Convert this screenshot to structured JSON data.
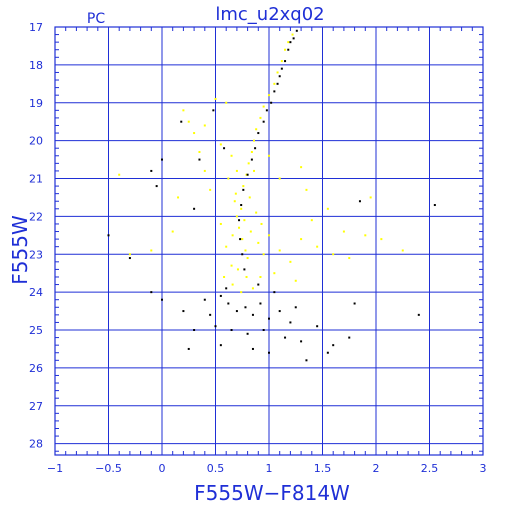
{
  "chart_data": {
    "type": "scatter",
    "title": "lmc_u2xq02",
    "corner_label": "PC",
    "xlabel": "F555W−F814W",
    "ylabel": "F555W",
    "xlim": [
      -1,
      3
    ],
    "ylim": [
      28.3,
      17
    ],
    "y_inverted": true,
    "grid": true,
    "x_ticks": [
      -1,
      -0.5,
      0,
      0.5,
      1,
      1.5,
      2,
      2.5,
      3
    ],
    "x_tick_labels": [
      "−1",
      "−0.5",
      "0",
      "0.5",
      "1",
      "1.5",
      "2",
      "2.5",
      "3"
    ],
    "y_ticks": [
      17,
      18,
      19,
      20,
      21,
      22,
      23,
      24,
      25,
      26,
      27,
      28
    ],
    "y_tick_labels": [
      "17",
      "18",
      "19",
      "20",
      "21",
      "22",
      "23",
      "24",
      "25",
      "26",
      "27",
      "28"
    ],
    "colors": {
      "axes": "#1f2fd6",
      "series_yellow": "#ffff00",
      "series_black": "#000000"
    },
    "series": [
      {
        "color": "#ffff00",
        "points": [
          [
            0.7,
            22.0
          ],
          [
            0.72,
            22.3
          ],
          [
            0.75,
            22.6
          ],
          [
            0.78,
            22.9
          ],
          [
            0.8,
            23.1
          ],
          [
            0.74,
            21.8
          ],
          [
            0.68,
            21.6
          ],
          [
            0.82,
            21.5
          ],
          [
            0.76,
            21.2
          ],
          [
            0.79,
            20.9
          ],
          [
            0.81,
            20.6
          ],
          [
            0.84,
            20.3
          ],
          [
            0.86,
            20.0
          ],
          [
            0.88,
            19.7
          ],
          [
            0.92,
            19.4
          ],
          [
            0.95,
            19.1
          ],
          [
            1.0,
            18.8
          ],
          [
            1.05,
            18.5
          ],
          [
            1.08,
            18.2
          ],
          [
            1.12,
            17.9
          ],
          [
            1.15,
            17.6
          ],
          [
            1.18,
            17.4
          ],
          [
            1.22,
            17.2
          ],
          [
            0.55,
            22.2
          ],
          [
            0.6,
            22.8
          ],
          [
            0.65,
            23.3
          ],
          [
            0.9,
            22.7
          ],
          [
            0.95,
            23.0
          ],
          [
            1.0,
            22.5
          ],
          [
            1.1,
            22.9
          ],
          [
            1.2,
            23.2
          ],
          [
            1.3,
            22.6
          ],
          [
            1.45,
            22.8
          ],
          [
            1.6,
            23.0
          ],
          [
            1.75,
            23.1
          ],
          [
            1.9,
            22.5
          ],
          [
            0.45,
            21.3
          ],
          [
            0.4,
            20.8
          ],
          [
            0.35,
            20.3
          ],
          [
            0.3,
            19.8
          ],
          [
            0.25,
            19.5
          ],
          [
            0.2,
            19.2
          ],
          [
            0.15,
            21.5
          ],
          [
            0.1,
            22.4
          ],
          [
            -0.1,
            22.9
          ],
          [
            -0.3,
            23.0
          ],
          [
            -0.4,
            20.9
          ],
          [
            0.6,
            19.0
          ],
          [
            0.5,
            18.9
          ],
          [
            0.4,
            19.6
          ],
          [
            0.55,
            20.1
          ],
          [
            0.65,
            20.4
          ],
          [
            0.7,
            20.8
          ],
          [
            0.58,
            23.6
          ],
          [
            0.66,
            23.8
          ],
          [
            0.74,
            24.0
          ],
          [
            0.85,
            23.9
          ],
          [
            0.92,
            23.6
          ],
          [
            1.05,
            23.5
          ],
          [
            1.25,
            23.7
          ],
          [
            1.4,
            22.1
          ],
          [
            1.55,
            21.8
          ],
          [
            1.7,
            22.4
          ],
          [
            1.35,
            21.3
          ],
          [
            1.1,
            21.0
          ],
          [
            1.0,
            20.4
          ],
          [
            1.3,
            20.7
          ],
          [
            2.05,
            22.6
          ],
          [
            2.25,
            22.9
          ],
          [
            1.95,
            21.5
          ],
          [
            0.62,
            21.0
          ],
          [
            0.77,
            22.1
          ],
          [
            0.83,
            22.4
          ],
          [
            0.71,
            23.4
          ],
          [
            0.88,
            21.9
          ],
          [
            0.66,
            22.5
          ],
          [
            0.93,
            22.2
          ],
          [
            0.79,
            23.6
          ],
          [
            0.69,
            21.4
          ],
          [
            0.86,
            20.8
          ]
        ]
      },
      {
        "color": "#000000",
        "points": [
          [
            0.55,
            24.1
          ],
          [
            0.62,
            24.3
          ],
          [
            0.7,
            24.5
          ],
          [
            0.78,
            24.4
          ],
          [
            0.85,
            24.6
          ],
          [
            0.92,
            24.3
          ],
          [
            1.0,
            24.7
          ],
          [
            1.1,
            24.5
          ],
          [
            1.2,
            24.8
          ],
          [
            0.5,
            24.9
          ],
          [
            0.65,
            25.0
          ],
          [
            0.8,
            25.1
          ],
          [
            0.95,
            25.0
          ],
          [
            1.15,
            25.2
          ],
          [
            1.3,
            25.3
          ],
          [
            0.45,
            24.6
          ],
          [
            0.4,
            24.2
          ],
          [
            0.6,
            23.9
          ],
          [
            0.9,
            23.8
          ],
          [
            1.05,
            24.0
          ],
          [
            1.25,
            24.4
          ],
          [
            1.45,
            24.9
          ],
          [
            1.6,
            25.4
          ],
          [
            1.75,
            25.2
          ],
          [
            0.3,
            25.0
          ],
          [
            0.2,
            24.5
          ],
          [
            0.0,
            24.2
          ],
          [
            -0.1,
            24.0
          ],
          [
            -0.3,
            23.1
          ],
          [
            -0.5,
            22.5
          ],
          [
            1.2,
            17.4
          ],
          [
            1.23,
            17.3
          ],
          [
            1.26,
            17.1
          ],
          [
            1.18,
            17.6
          ],
          [
            1.15,
            17.9
          ],
          [
            1.12,
            18.1
          ],
          [
            1.1,
            18.3
          ],
          [
            1.08,
            18.5
          ],
          [
            1.05,
            18.7
          ],
          [
            1.02,
            19.0
          ],
          [
            0.98,
            19.2
          ],
          [
            0.95,
            19.5
          ],
          [
            0.9,
            19.8
          ],
          [
            0.87,
            20.2
          ],
          [
            0.84,
            20.5
          ],
          [
            0.8,
            20.9
          ],
          [
            0.76,
            21.3
          ],
          [
            0.74,
            21.7
          ],
          [
            0.72,
            22.1
          ],
          [
            0.73,
            22.6
          ],
          [
            0.75,
            23.0
          ],
          [
            0.77,
            23.4
          ],
          [
            0.0,
            20.5
          ],
          [
            -0.1,
            20.8
          ],
          [
            -0.05,
            21.2
          ],
          [
            0.35,
            20.5
          ],
          [
            0.3,
            21.8
          ],
          [
            1.85,
            21.6
          ],
          [
            2.55,
            21.7
          ],
          [
            2.4,
            24.6
          ],
          [
            1.8,
            24.3
          ],
          [
            1.55,
            25.6
          ],
          [
            1.35,
            25.8
          ],
          [
            0.25,
            25.5
          ],
          [
            0.55,
            25.4
          ],
          [
            0.85,
            25.5
          ],
          [
            1.0,
            25.6
          ],
          [
            0.58,
            20.2
          ],
          [
            0.48,
            19.2
          ],
          [
            0.18,
            19.5
          ]
        ]
      }
    ]
  }
}
